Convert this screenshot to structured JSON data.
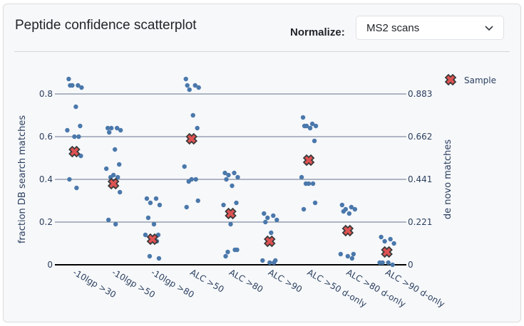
{
  "card": {
    "title": "Peptide confidence scatterplot",
    "normalize_label": "Normalize:",
    "normalize_select": {
      "value": "MS2 scans",
      "icon": "chevron-down-icon"
    }
  },
  "colors": {
    "point": "#4a78ab",
    "sample_fill": "#e05252",
    "sample_stroke": "#3a3a3a",
    "grid": "#66758a",
    "zeroline": "#000000",
    "text": "#2a3f5f"
  },
  "chart_data": {
    "type": "scatter",
    "title": "Peptide confidence scatterplot",
    "xlabel": "",
    "ylabel": "fraction DB search matches",
    "y2label": "de novo matches",
    "ylim": [
      0,
      0.9
    ],
    "yticks": [
      "0",
      "0.2",
      "0.4",
      "0.6",
      "0.8"
    ],
    "y2ticks": [
      "0",
      "0.221",
      "0.441",
      "0.662",
      "0.883"
    ],
    "grid": true,
    "legend": {
      "position": "top-right",
      "entries": [
        "Sample"
      ]
    },
    "categories": [
      "-10lgp >30",
      "-10lgp >50",
      "-10lgp >80",
      "ALC >50",
      "ALC >80",
      "ALC >90",
      "ALC >50 d-only",
      "ALC >80 d-only",
      "ALC >90 d-only"
    ],
    "points": [
      [
        0.87,
        0.84,
        0.84,
        0.83,
        0.84,
        0.74,
        0.65,
        0.63,
        0.6,
        0.6,
        0.54,
        0.51,
        0.4,
        0.36
      ],
      [
        0.64,
        0.64,
        0.64,
        0.63,
        0.62,
        0.54,
        0.47,
        0.45,
        0.42,
        0.41,
        0.41,
        0.34,
        0.21,
        0.19
      ],
      [
        0.31,
        0.31,
        0.29,
        0.28,
        0.22,
        0.19,
        0.14,
        0.14,
        0.12,
        0.11,
        0.04,
        0.03
      ],
      [
        0.87,
        0.84,
        0.82,
        0.83,
        0.84,
        0.7,
        0.64,
        0.46,
        0.4,
        0.4,
        0.39,
        0.3,
        0.27
      ],
      [
        0.43,
        0.43,
        0.42,
        0.41,
        0.4,
        0.37,
        0.29,
        0.28,
        0.19,
        0.07,
        0.06,
        0.07,
        0.04
      ],
      [
        0.24,
        0.23,
        0.22,
        0.21,
        0.2,
        0.15,
        0.02,
        0.02,
        0.01,
        0.01
      ],
      [
        0.69,
        0.66,
        0.65,
        0.65,
        0.65,
        0.64,
        0.58,
        0.41,
        0.38,
        0.38,
        0.38,
        0.29,
        0.26
      ],
      [
        0.28,
        0.27,
        0.26,
        0.26,
        0.25,
        0.24,
        0.05,
        0.05,
        0.04,
        0.03
      ],
      [
        0.13,
        0.12,
        0.11,
        0.1,
        0.01,
        0.01,
        0.0,
        0.01
      ]
    ],
    "series": [
      {
        "name": "Sample",
        "values": [
          0.53,
          0.38,
          0.12,
          0.59,
          0.24,
          0.11,
          0.49,
          0.16,
          0.06
        ]
      }
    ]
  }
}
